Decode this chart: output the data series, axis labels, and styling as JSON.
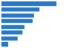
{
  "values": [
    74,
    51,
    44,
    42,
    31,
    28,
    22,
    9
  ],
  "bar_color": "#2878c8",
  "background_color": "#ffffff",
  "grid_color": "#cccccc",
  "bar_height": 0.75,
  "xlim": [
    0,
    88
  ]
}
